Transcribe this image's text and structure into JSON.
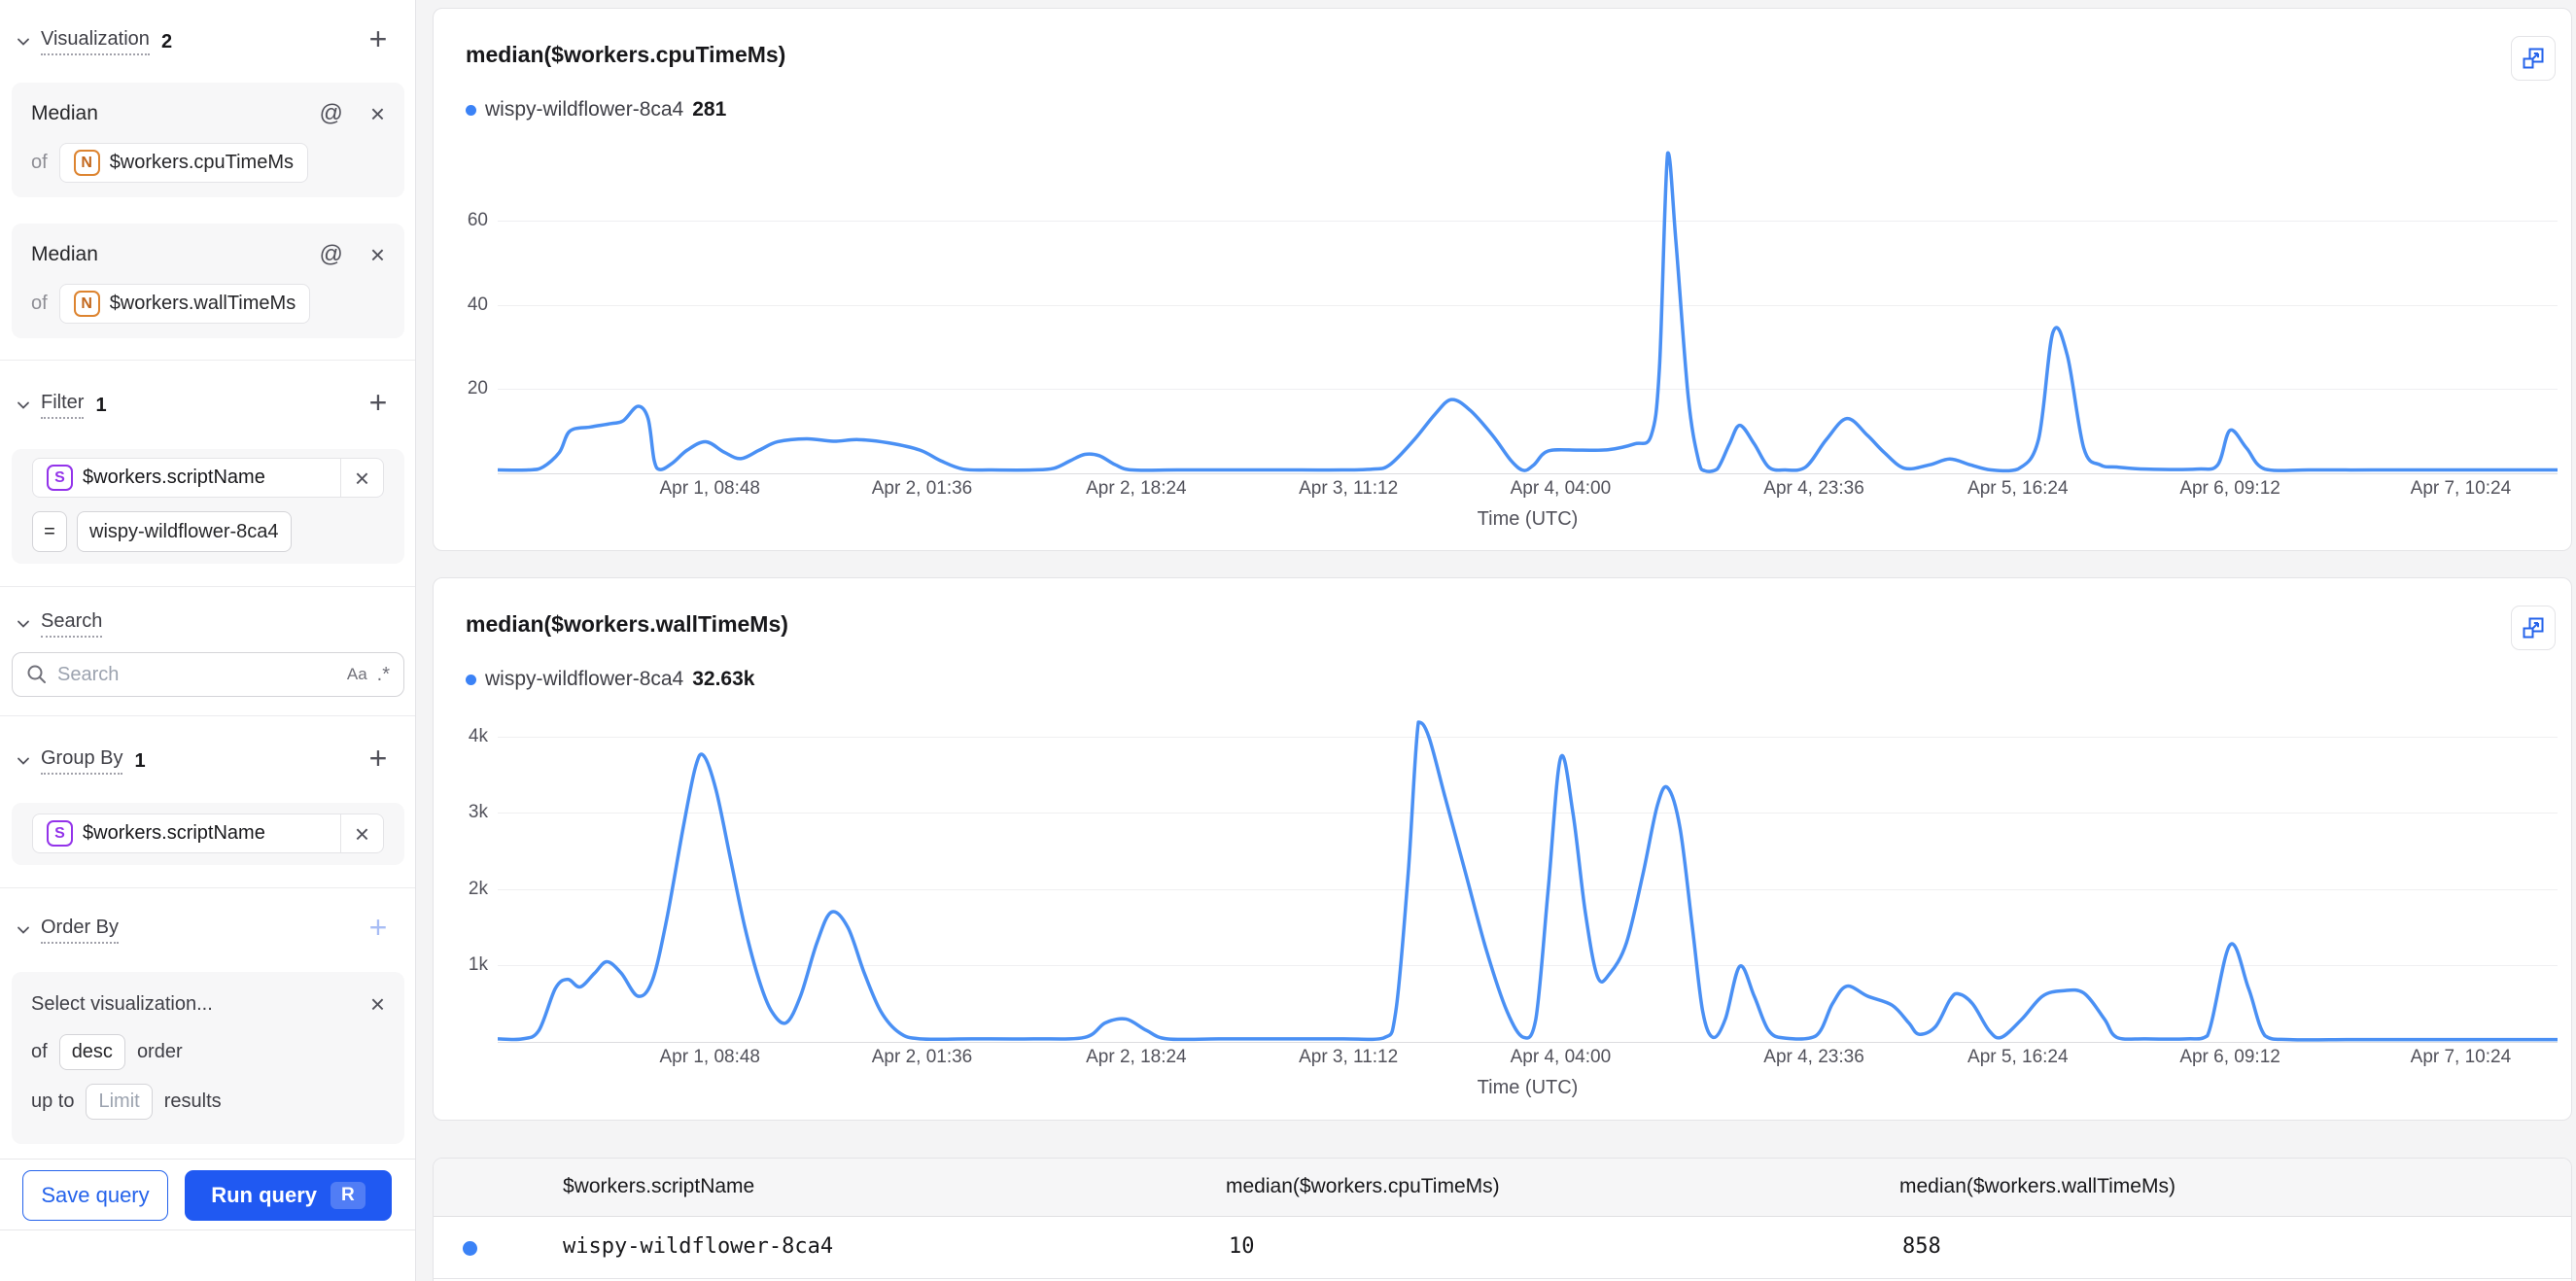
{
  "colors": {
    "accent": "#2059f2",
    "chart_line": "#4a90f4",
    "series_dot": "#3b82f6"
  },
  "sidebar": {
    "visualization": {
      "label": "Visualization",
      "count": "2",
      "cards": [
        {
          "title": "Median",
          "of_label": "of",
          "field_badge": "N",
          "field": "$workers.cpuTimeMs"
        },
        {
          "title": "Median",
          "of_label": "of",
          "field_badge": "N",
          "field": "$workers.wallTimeMs"
        }
      ]
    },
    "filter": {
      "label": "Filter",
      "count": "1",
      "field_badge": "S",
      "field": "$workers.scriptName",
      "operator": "=",
      "value": "wispy-wildflower-8ca4"
    },
    "search": {
      "label": "Search",
      "placeholder": "Search",
      "match_case": "Aa",
      "regex": ".*"
    },
    "group_by": {
      "label": "Group By",
      "count": "1",
      "field_badge": "S",
      "field": "$workers.scriptName"
    },
    "order_by": {
      "label": "Order By",
      "placeholder": "Select visualization...",
      "of_label": "of",
      "direction": "desc",
      "order_label": "order",
      "up_to_label": "up to",
      "limit_placeholder": "Limit",
      "results_label": "results"
    },
    "footer": {
      "save_label": "Save query",
      "run_label": "Run query",
      "run_shortcut": "R"
    }
  },
  "charts": [
    {
      "type": "line",
      "title": "median($workers.cpuTimeMs)",
      "legend": {
        "name": "wispy-wildflower-8ca4",
        "value": "281"
      },
      "x_axis": {
        "label": "Time (UTC)",
        "ticks": [
          {
            "label": "Apr 1, 08:48",
            "pos": 0.103
          },
          {
            "label": "Apr 2, 01:36",
            "pos": 0.206
          },
          {
            "label": "Apr 2, 18:24",
            "pos": 0.31
          },
          {
            "label": "Apr 3, 11:12",
            "pos": 0.413
          },
          {
            "label": "Apr 4, 04:00",
            "pos": 0.516
          },
          {
            "label": "Apr 4, 23:36",
            "pos": 0.639
          },
          {
            "label": "Apr 5, 16:24",
            "pos": 0.738
          },
          {
            "label": "Apr 6, 09:12",
            "pos": 0.841
          },
          {
            "label": "Apr 7, 10:24",
            "pos": 0.953
          }
        ]
      },
      "y_axis": {
        "max": 77.5,
        "ticks": [
          {
            "label": "20",
            "value": 20
          },
          {
            "label": "40",
            "value": 40
          },
          {
            "label": "60",
            "value": 60
          }
        ]
      },
      "points": [
        [
          0,
          0.8
        ],
        [
          0.015,
          0.8
        ],
        [
          0.022,
          1.5
        ],
        [
          0.03,
          5
        ],
        [
          0.035,
          10
        ],
        [
          0.045,
          11
        ],
        [
          0.055,
          11.8
        ],
        [
          0.061,
          12.5
        ],
        [
          0.068,
          15.9
        ],
        [
          0.073,
          13
        ],
        [
          0.076,
          3
        ],
        [
          0.079,
          0.9
        ],
        [
          0.085,
          2.5
        ],
        [
          0.092,
          5.5
        ],
        [
          0.101,
          7.5
        ],
        [
          0.11,
          5
        ],
        [
          0.118,
          3.5
        ],
        [
          0.127,
          5.5
        ],
        [
          0.136,
          7.5
        ],
        [
          0.15,
          8.2
        ],
        [
          0.163,
          7.6
        ],
        [
          0.175,
          8
        ],
        [
          0.19,
          7.2
        ],
        [
          0.205,
          5.5
        ],
        [
          0.215,
          3
        ],
        [
          0.226,
          1
        ],
        [
          0.24,
          0.8
        ],
        [
          0.26,
          0.8
        ],
        [
          0.27,
          1.2
        ],
        [
          0.278,
          3
        ],
        [
          0.285,
          4.5
        ],
        [
          0.292,
          4.2
        ],
        [
          0.3,
          2
        ],
        [
          0.308,
          0.8
        ],
        [
          0.33,
          0.8
        ],
        [
          0.36,
          0.8
        ],
        [
          0.39,
          0.8
        ],
        [
          0.41,
          0.8
        ],
        [
          0.425,
          1
        ],
        [
          0.433,
          2
        ],
        [
          0.445,
          8
        ],
        [
          0.455,
          14
        ],
        [
          0.463,
          17.5
        ],
        [
          0.472,
          15
        ],
        [
          0.483,
          9
        ],
        [
          0.492,
          3
        ],
        [
          0.498,
          0.7
        ],
        [
          0.503,
          2
        ],
        [
          0.51,
          5.3
        ],
        [
          0.525,
          5.5
        ],
        [
          0.539,
          5.6
        ],
        [
          0.552,
          7
        ],
        [
          0.56,
          9
        ],
        [
          0.564,
          25
        ],
        [
          0.568,
          76
        ],
        [
          0.572,
          55
        ],
        [
          0.578,
          18
        ],
        [
          0.583,
          3
        ],
        [
          0.586,
          0.6
        ],
        [
          0.592,
          1
        ],
        [
          0.598,
          7
        ],
        [
          0.603,
          11.4
        ],
        [
          0.61,
          7
        ],
        [
          0.617,
          1.5
        ],
        [
          0.625,
          0.8
        ],
        [
          0.635,
          1.5
        ],
        [
          0.645,
          8
        ],
        [
          0.655,
          13
        ],
        [
          0.665,
          9
        ],
        [
          0.673,
          5
        ],
        [
          0.683,
          1.2
        ],
        [
          0.695,
          2
        ],
        [
          0.705,
          3.4
        ],
        [
          0.715,
          2
        ],
        [
          0.725,
          0.8
        ],
        [
          0.738,
          1
        ],
        [
          0.748,
          8
        ],
        [
          0.755,
          33.4
        ],
        [
          0.762,
          28
        ],
        [
          0.77,
          6
        ],
        [
          0.778,
          2
        ],
        [
          0.786,
          1.5
        ],
        [
          0.8,
          1
        ],
        [
          0.825,
          1
        ],
        [
          0.835,
          2
        ],
        [
          0.841,
          10.2
        ],
        [
          0.849,
          6
        ],
        [
          0.858,
          1
        ],
        [
          0.88,
          0.8
        ],
        [
          0.91,
          0.8
        ],
        [
          0.94,
          0.8
        ],
        [
          0.97,
          0.8
        ],
        [
          1,
          0.8
        ]
      ]
    },
    {
      "type": "line",
      "title": "median($workers.wallTimeMs)",
      "legend": {
        "name": "wispy-wildflower-8ca4",
        "value": "32.63k"
      },
      "x_axis": {
        "label": "Time (UTC)",
        "ticks": [
          {
            "label": "Apr 1, 08:48",
            "pos": 0.103
          },
          {
            "label": "Apr 2, 01:36",
            "pos": 0.206
          },
          {
            "label": "Apr 2, 18:24",
            "pos": 0.31
          },
          {
            "label": "Apr 3, 11:12",
            "pos": 0.413
          },
          {
            "label": "Apr 4, 04:00",
            "pos": 0.516
          },
          {
            "label": "Apr 4, 23:36",
            "pos": 0.639
          },
          {
            "label": "Apr 5, 16:24",
            "pos": 0.738
          },
          {
            "label": "Apr 6, 09:12",
            "pos": 0.841
          },
          {
            "label": "Apr 7, 10:24",
            "pos": 0.953
          }
        ]
      },
      "y_axis": {
        "max": 4215,
        "ticks": [
          {
            "label": "1k",
            "value": 1000
          },
          {
            "label": "2k",
            "value": 2000
          },
          {
            "label": "3k",
            "value": 3000
          },
          {
            "label": "4k",
            "value": 4000
          }
        ]
      },
      "points": [
        [
          0,
          40
        ],
        [
          0.012,
          40
        ],
        [
          0.02,
          150
        ],
        [
          0.028,
          700
        ],
        [
          0.034,
          820
        ],
        [
          0.04,
          720
        ],
        [
          0.047,
          900
        ],
        [
          0.053,
          1050
        ],
        [
          0.06,
          900
        ],
        [
          0.068,
          600
        ],
        [
          0.075,
          800
        ],
        [
          0.082,
          1600
        ],
        [
          0.09,
          2800
        ],
        [
          0.096,
          3600
        ],
        [
          0.1,
          3750
        ],
        [
          0.106,
          3300
        ],
        [
          0.113,
          2400
        ],
        [
          0.12,
          1500
        ],
        [
          0.127,
          800
        ],
        [
          0.133,
          400
        ],
        [
          0.14,
          250
        ],
        [
          0.147,
          600
        ],
        [
          0.155,
          1300
        ],
        [
          0.162,
          1700
        ],
        [
          0.17,
          1500
        ],
        [
          0.178,
          900
        ],
        [
          0.186,
          400
        ],
        [
          0.195,
          120
        ],
        [
          0.205,
          40
        ],
        [
          0.23,
          40
        ],
        [
          0.26,
          40
        ],
        [
          0.285,
          60
        ],
        [
          0.295,
          250
        ],
        [
          0.305,
          300
        ],
        [
          0.315,
          150
        ],
        [
          0.325,
          40
        ],
        [
          0.35,
          40
        ],
        [
          0.38,
          40
        ],
        [
          0.41,
          40
        ],
        [
          0.43,
          50
        ],
        [
          0.436,
          400
        ],
        [
          0.442,
          2200
        ],
        [
          0.447,
          4280
        ],
        [
          0.452,
          4000
        ],
        [
          0.46,
          3200
        ],
        [
          0.47,
          2200
        ],
        [
          0.48,
          1200
        ],
        [
          0.49,
          400
        ],
        [
          0.498,
          60
        ],
        [
          0.504,
          300
        ],
        [
          0.51,
          2000
        ],
        [
          0.516,
          3720
        ],
        [
          0.522,
          3000
        ],
        [
          0.528,
          1700
        ],
        [
          0.534,
          850
        ],
        [
          0.54,
          900
        ],
        [
          0.548,
          1300
        ],
        [
          0.556,
          2200
        ],
        [
          0.563,
          3100
        ],
        [
          0.568,
          3330
        ],
        [
          0.574,
          2800
        ],
        [
          0.58,
          1500
        ],
        [
          0.585,
          400
        ],
        [
          0.59,
          60
        ],
        [
          0.596,
          300
        ],
        [
          0.603,
          990
        ],
        [
          0.61,
          600
        ],
        [
          0.617,
          150
        ],
        [
          0.625,
          50
        ],
        [
          0.64,
          80
        ],
        [
          0.648,
          500
        ],
        [
          0.655,
          730
        ],
        [
          0.665,
          600
        ],
        [
          0.677,
          480
        ],
        [
          0.685,
          250
        ],
        [
          0.69,
          100
        ],
        [
          0.698,
          200
        ],
        [
          0.705,
          550
        ],
        [
          0.709,
          630
        ],
        [
          0.716,
          500
        ],
        [
          0.724,
          150
        ],
        [
          0.73,
          60
        ],
        [
          0.74,
          300
        ],
        [
          0.75,
          600
        ],
        [
          0.76,
          670
        ],
        [
          0.77,
          640
        ],
        [
          0.78,
          300
        ],
        [
          0.786,
          60
        ],
        [
          0.8,
          40
        ],
        [
          0.82,
          40
        ],
        [
          0.83,
          80
        ],
        [
          0.841,
          1270
        ],
        [
          0.85,
          700
        ],
        [
          0.858,
          80
        ],
        [
          0.87,
          30
        ],
        [
          0.9,
          30
        ],
        [
          0.93,
          30
        ],
        [
          0.96,
          30
        ],
        [
          1,
          30
        ]
      ]
    }
  ],
  "table": {
    "headers": [
      "$workers.scriptName",
      "median($workers.cpuTimeMs)",
      "median($workers.wallTimeMs)"
    ],
    "rows": [
      {
        "script_name": "wispy-wildflower-8ca4",
        "cpu_time": "10",
        "wall_time": "858"
      }
    ]
  }
}
